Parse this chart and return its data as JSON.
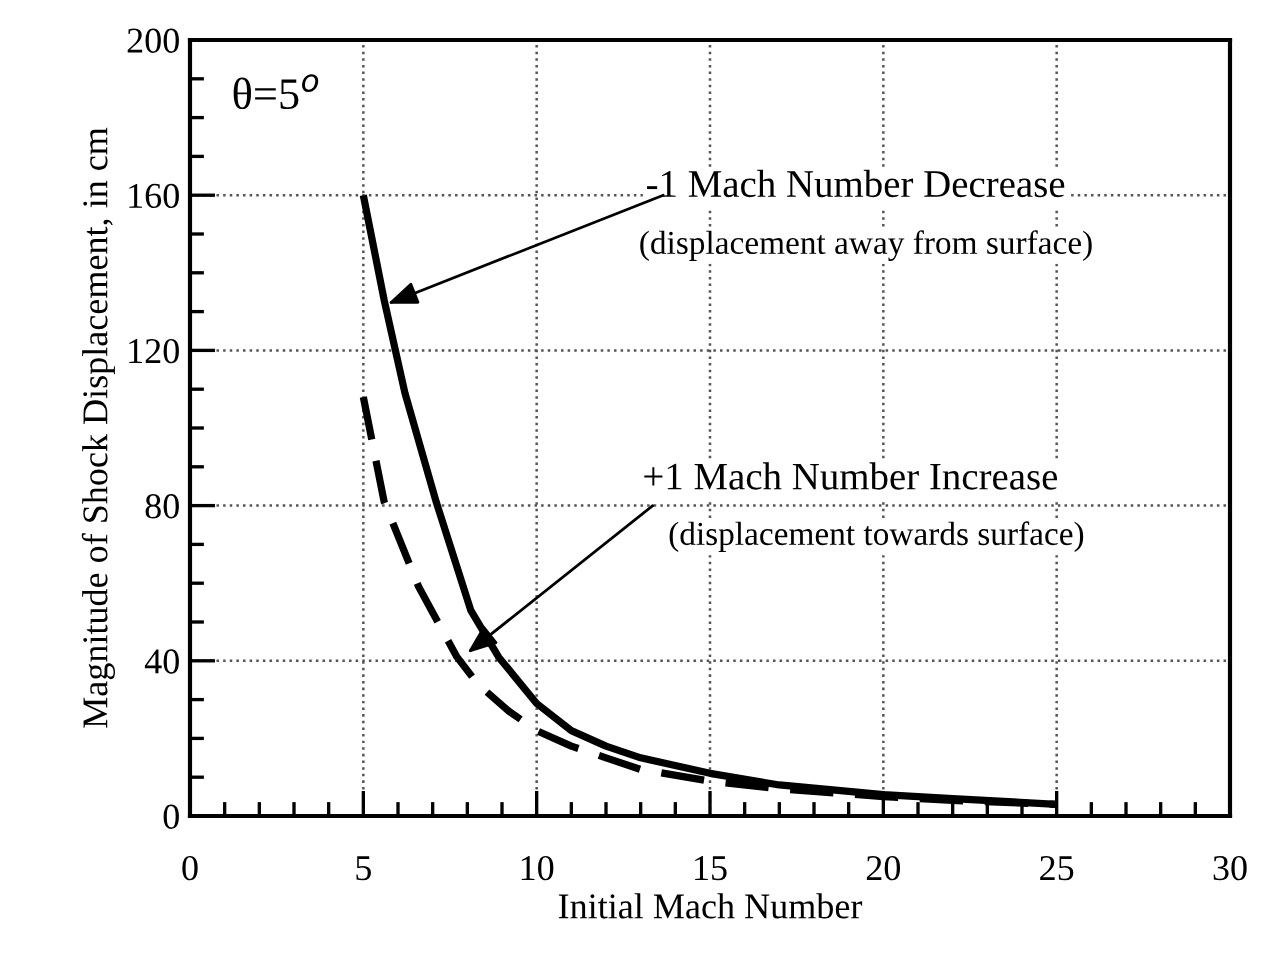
{
  "chart_data": {
    "type": "line",
    "xlabel": "Initial Mach Number",
    "ylabel": "Magnitude of Shock Displacement, in cm",
    "series": [
      {
        "color": "#000000",
        "line_style": "solid",
        "x": [
          5,
          5.6,
          6.2,
          7.1,
          8.1,
          8.9,
          10,
          11,
          12,
          13,
          15,
          17,
          20,
          22,
          25
        ],
        "values": [
          160,
          133,
          109,
          81,
          53,
          41,
          29,
          22,
          18,
          15,
          11,
          8,
          5.5,
          4.5,
          3
        ]
      },
      {
        "color": "#000000",
        "line_style": "dashed",
        "x": [
          5,
          5.6,
          6.6,
          7.7,
          8.3,
          9.2,
          10,
          11,
          12,
          13,
          15,
          17,
          20,
          22,
          25
        ],
        "values": [
          108,
          81,
          59,
          41,
          34,
          27,
          22,
          18,
          15,
          12,
          9,
          7,
          5,
          4,
          3
        ]
      }
    ],
    "annotations": [
      "θ=5$^{o}$",
      {
        "text": "-1 Mach Number Decrease",
        "x": 5.7,
        "y": 132
      },
      "(displacement away from surface)",
      {
        "text": "+1 Mach Number Increase",
        "x": 8,
        "y": 42
      },
      "(displacement towards surface)"
    ],
    "xlim": [
      0,
      30
    ],
    "xticks": [
      0,
      5,
      10,
      15,
      20,
      25,
      30
    ],
    "ylim": [
      0,
      200
    ],
    "yticks": [
      0,
      40,
      80,
      120,
      160,
      200
    ],
    "grid": true,
    "marker": "none"
  }
}
